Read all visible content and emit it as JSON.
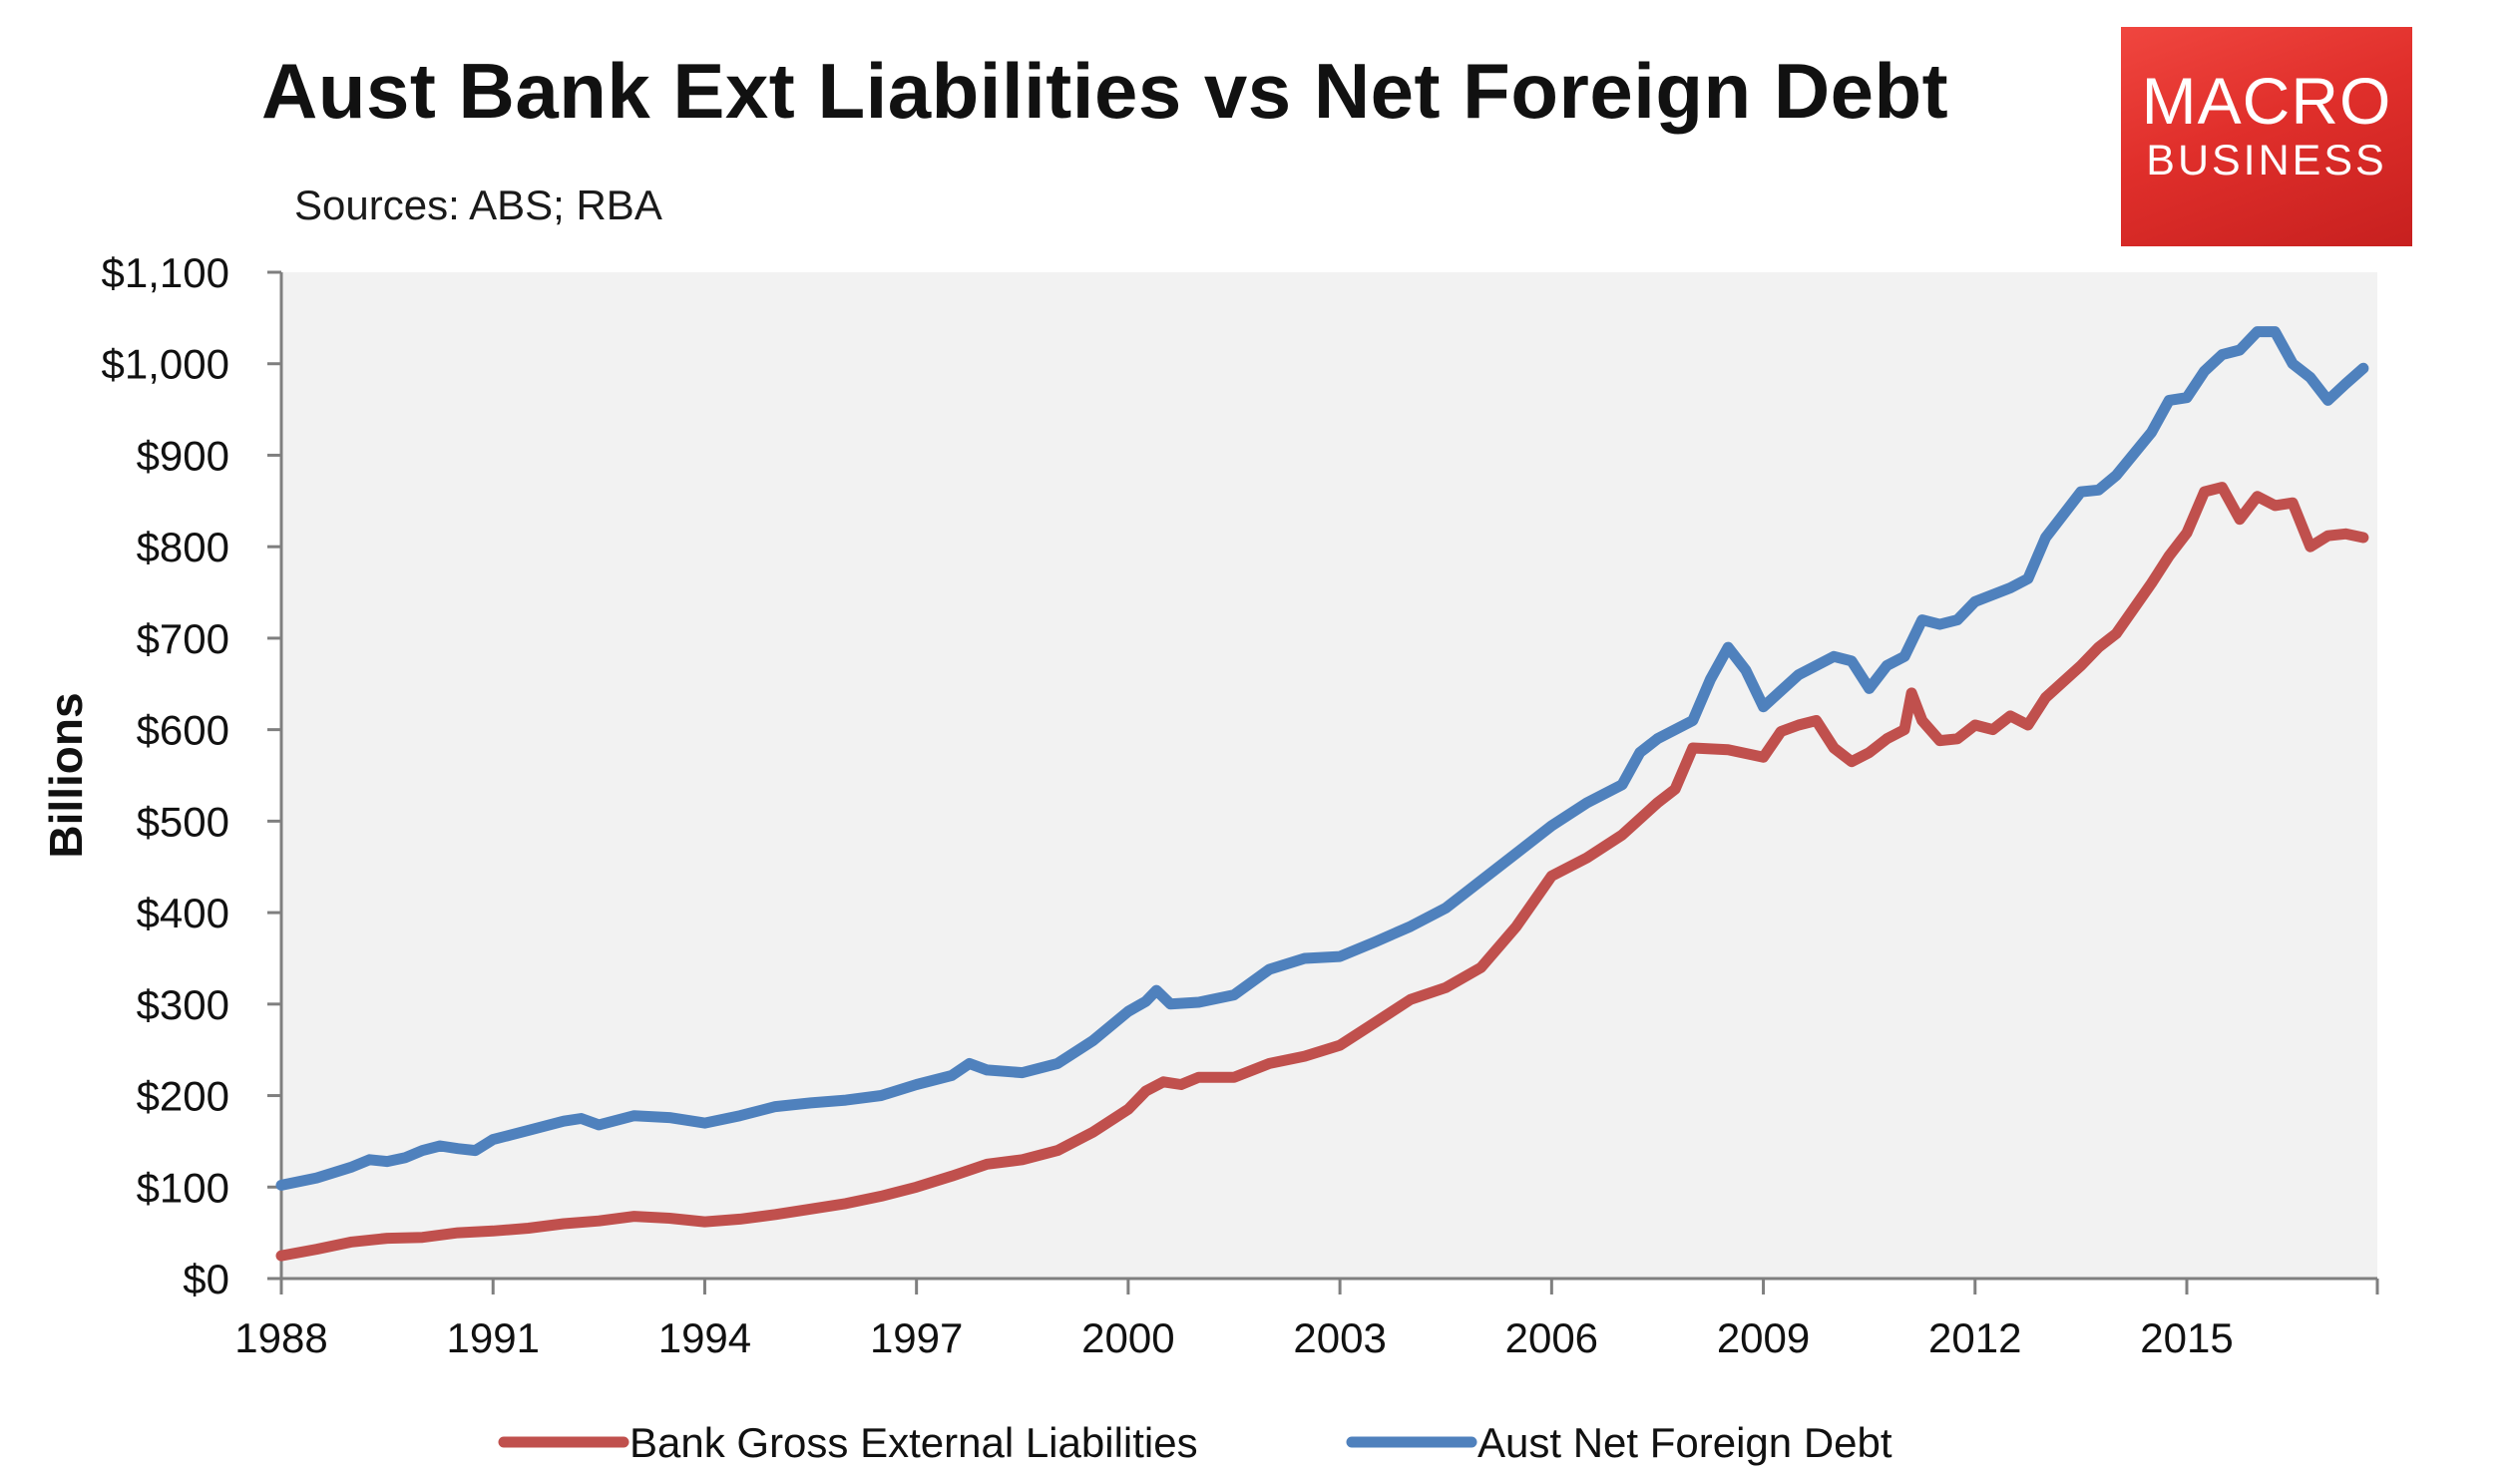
{
  "title": "Aust Bank Ext Liabilities vs Net Foreign Debt",
  "subtitle": "Sources: ABS; RBA",
  "logo": {
    "line1": "MACRO",
    "line2": "BUSINESS",
    "color": "#e23530"
  },
  "colors": {
    "plot_background": "#f2f2f2",
    "series_red": "#c0504d",
    "series_blue": "#4f81bd"
  },
  "chart_data": {
    "type": "line",
    "title": "Aust Bank Ext Liabilities vs Net Foreign Debt",
    "subtitle": "Sources: ABS; RBA",
    "xlabel": "",
    "ylabel": "Billions",
    "xlim": [
      1988,
      2017.7
    ],
    "ylim": [
      0,
      1100
    ],
    "x_ticks": [
      1988,
      1991,
      1994,
      1997,
      2000,
      2003,
      2006,
      2009,
      2012,
      2015
    ],
    "x_tick_labels": [
      "1988",
      "1991",
      "1994",
      "1997",
      "2000",
      "2003",
      "2006",
      "2009",
      "2012",
      "2015"
    ],
    "y_ticks": [
      0,
      100,
      200,
      300,
      400,
      500,
      600,
      700,
      800,
      900,
      1000,
      1100
    ],
    "y_tick_labels": [
      "$0",
      "$100",
      "$200",
      "$300",
      "$400",
      "$500",
      "$600",
      "$700",
      "$800",
      "$900",
      "$1,000",
      "$1,100"
    ],
    "grid": false,
    "legend": "bottom",
    "series": [
      {
        "name": "Bank Gross External Liabilities",
        "color": "#c0504d",
        "points": [
          [
            1988.0,
            25
          ],
          [
            1988.5,
            32
          ],
          [
            1989.0,
            40
          ],
          [
            1989.5,
            44
          ],
          [
            1990.0,
            45
          ],
          [
            1990.5,
            50
          ],
          [
            1991.0,
            52
          ],
          [
            1991.5,
            55
          ],
          [
            1992.0,
            60
          ],
          [
            1992.5,
            63
          ],
          [
            1993.0,
            68
          ],
          [
            1993.5,
            66
          ],
          [
            1994.0,
            62
          ],
          [
            1994.5,
            65
          ],
          [
            1995.0,
            70
          ],
          [
            1995.5,
            76
          ],
          [
            1996.0,
            82
          ],
          [
            1996.5,
            90
          ],
          [
            1997.0,
            100
          ],
          [
            1997.5,
            112
          ],
          [
            1998.0,
            125
          ],
          [
            1998.5,
            130
          ],
          [
            1999.0,
            140
          ],
          [
            1999.5,
            160
          ],
          [
            2000.0,
            185
          ],
          [
            2000.25,
            205
          ],
          [
            2000.5,
            215
          ],
          [
            2000.75,
            212
          ],
          [
            2001.0,
            220
          ],
          [
            2001.5,
            220
          ],
          [
            2002.0,
            235
          ],
          [
            2002.5,
            243
          ],
          [
            2003.0,
            255
          ],
          [
            2003.5,
            280
          ],
          [
            2004.0,
            305
          ],
          [
            2004.5,
            318
          ],
          [
            2005.0,
            340
          ],
          [
            2005.5,
            385
          ],
          [
            2006.0,
            440
          ],
          [
            2006.5,
            460
          ],
          [
            2007.0,
            485
          ],
          [
            2007.5,
            520
          ],
          [
            2007.75,
            535
          ],
          [
            2008.0,
            580
          ],
          [
            2008.5,
            578
          ],
          [
            2009.0,
            570
          ],
          [
            2009.25,
            598
          ],
          [
            2009.5,
            605
          ],
          [
            2009.75,
            610
          ],
          [
            2010.0,
            580
          ],
          [
            2010.25,
            565
          ],
          [
            2010.5,
            575
          ],
          [
            2010.75,
            590
          ],
          [
            2011.0,
            600
          ],
          [
            2011.1,
            640
          ],
          [
            2011.25,
            610
          ],
          [
            2011.5,
            588
          ],
          [
            2011.75,
            590
          ],
          [
            2012.0,
            605
          ],
          [
            2012.25,
            600
          ],
          [
            2012.5,
            615
          ],
          [
            2012.75,
            605
          ],
          [
            2013.0,
            635
          ],
          [
            2013.5,
            670
          ],
          [
            2013.75,
            690
          ],
          [
            2014.0,
            705
          ],
          [
            2014.5,
            760
          ],
          [
            2014.75,
            790
          ],
          [
            2015.0,
            815
          ],
          [
            2015.25,
            860
          ],
          [
            2015.5,
            865
          ],
          [
            2015.75,
            830
          ],
          [
            2016.0,
            855
          ],
          [
            2016.25,
            845
          ],
          [
            2016.5,
            848
          ],
          [
            2016.75,
            800
          ],
          [
            2017.0,
            812
          ],
          [
            2017.25,
            814
          ],
          [
            2017.5,
            810
          ]
        ]
      },
      {
        "name": "Aust Net Foreign Debt",
        "color": "#4f81bd",
        "points": [
          [
            1988.0,
            102
          ],
          [
            1988.5,
            110
          ],
          [
            1989.0,
            122
          ],
          [
            1989.25,
            130
          ],
          [
            1989.5,
            128
          ],
          [
            1989.75,
            132
          ],
          [
            1990.0,
            140
          ],
          [
            1990.25,
            145
          ],
          [
            1990.5,
            142
          ],
          [
            1990.75,
            140
          ],
          [
            1991.0,
            152
          ],
          [
            1991.5,
            162
          ],
          [
            1992.0,
            172
          ],
          [
            1992.25,
            175
          ],
          [
            1992.5,
            168
          ],
          [
            1992.75,
            173
          ],
          [
            1993.0,
            178
          ],
          [
            1993.5,
            176
          ],
          [
            1994.0,
            170
          ],
          [
            1994.5,
            178
          ],
          [
            1995.0,
            188
          ],
          [
            1995.5,
            192
          ],
          [
            1996.0,
            195
          ],
          [
            1996.5,
            200
          ],
          [
            1997.0,
            212
          ],
          [
            1997.5,
            222
          ],
          [
            1997.75,
            235
          ],
          [
            1998.0,
            228
          ],
          [
            1998.5,
            225
          ],
          [
            1999.0,
            235
          ],
          [
            1999.5,
            260
          ],
          [
            2000.0,
            292
          ],
          [
            2000.25,
            303
          ],
          [
            2000.4,
            315
          ],
          [
            2000.6,
            300
          ],
          [
            2001.0,
            302
          ],
          [
            2001.5,
            310
          ],
          [
            2002.0,
            338
          ],
          [
            2002.5,
            350
          ],
          [
            2003.0,
            352
          ],
          [
            2003.5,
            368
          ],
          [
            2004.0,
            385
          ],
          [
            2004.5,
            405
          ],
          [
            2005.0,
            435
          ],
          [
            2005.5,
            465
          ],
          [
            2006.0,
            495
          ],
          [
            2006.5,
            520
          ],
          [
            2007.0,
            540
          ],
          [
            2007.25,
            575
          ],
          [
            2007.5,
            590
          ],
          [
            2007.75,
            600
          ],
          [
            2008.0,
            610
          ],
          [
            2008.25,
            655
          ],
          [
            2008.5,
            690
          ],
          [
            2008.75,
            665
          ],
          [
            2009.0,
            625
          ],
          [
            2009.5,
            660
          ],
          [
            2010.0,
            680
          ],
          [
            2010.25,
            675
          ],
          [
            2010.5,
            645
          ],
          [
            2010.75,
            670
          ],
          [
            2011.0,
            680
          ],
          [
            2011.25,
            720
          ],
          [
            2011.5,
            715
          ],
          [
            2011.75,
            720
          ],
          [
            2012.0,
            740
          ],
          [
            2012.5,
            755
          ],
          [
            2012.75,
            765
          ],
          [
            2013.0,
            810
          ],
          [
            2013.5,
            860
          ],
          [
            2013.75,
            862
          ],
          [
            2014.0,
            878
          ],
          [
            2014.5,
            925
          ],
          [
            2014.75,
            960
          ],
          [
            2015.0,
            963
          ],
          [
            2015.25,
            992
          ],
          [
            2015.5,
            1010
          ],
          [
            2015.75,
            1015
          ],
          [
            2016.0,
            1035
          ],
          [
            2016.25,
            1035
          ],
          [
            2016.5,
            1000
          ],
          [
            2016.75,
            985
          ],
          [
            2017.0,
            960
          ],
          [
            2017.25,
            978
          ],
          [
            2017.5,
            995
          ]
        ]
      }
    ]
  }
}
